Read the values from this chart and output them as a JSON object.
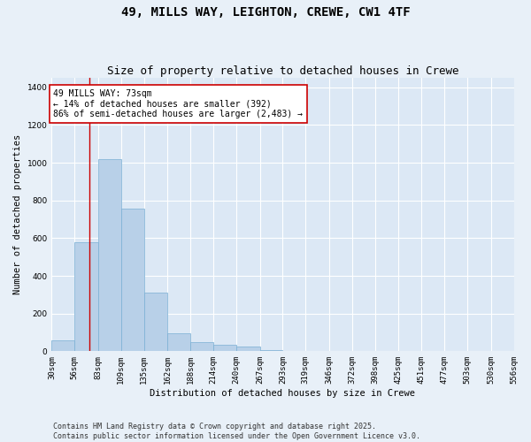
{
  "title": "49, MILLS WAY, LEIGHTON, CREWE, CW1 4TF",
  "subtitle": "Size of property relative to detached houses in Crewe",
  "xlabel": "Distribution of detached houses by size in Crewe",
  "ylabel": "Number of detached properties",
  "bar_color": "#b8d0e8",
  "bar_edge_color": "#7aafd4",
  "background_color": "#dce8f5",
  "fig_background_color": "#e8f0f8",
  "grid_color": "#ffffff",
  "annotation_box_color": "#cc0000",
  "vline_color": "#cc0000",
  "property_value": 73,
  "annotation_line1": "49 MILLS WAY: 73sqm",
  "annotation_line2": "← 14% of detached houses are smaller (392)",
  "annotation_line3": "86% of semi-detached houses are larger (2,483) →",
  "bins": [
    30,
    56,
    83,
    109,
    135,
    162,
    188,
    214,
    240,
    267,
    293,
    319,
    346,
    372,
    398,
    425,
    451,
    477,
    503,
    530,
    556
  ],
  "values": [
    60,
    580,
    1020,
    755,
    310,
    95,
    50,
    35,
    25,
    5,
    0,
    0,
    0,
    0,
    0,
    0,
    0,
    0,
    0,
    0
  ],
  "ylim": [
    0,
    1450
  ],
  "yticks": [
    0,
    200,
    400,
    600,
    800,
    1000,
    1200,
    1400
  ],
  "footer_text": "Contains HM Land Registry data © Crown copyright and database right 2025.\nContains public sector information licensed under the Open Government Licence v3.0.",
  "title_fontsize": 10,
  "subtitle_fontsize": 9,
  "axis_label_fontsize": 7.5,
  "tick_fontsize": 6.5,
  "annotation_fontsize": 7,
  "footer_fontsize": 6
}
